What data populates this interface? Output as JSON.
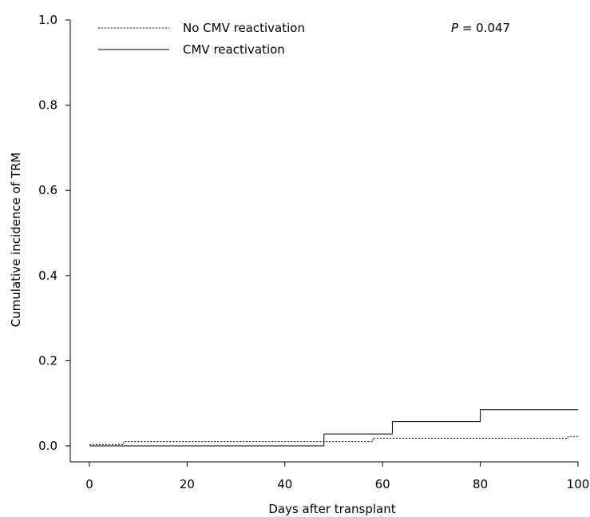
{
  "chart_data": {
    "type": "line",
    "step": true,
    "xlabel": "Days after transplant",
    "ylabel": "Cumulative incidence of TRM",
    "xlim": [
      0,
      100
    ],
    "ylim": [
      0,
      1.0
    ],
    "x_ticks": [
      "0",
      "20",
      "40",
      "60",
      "80",
      "100"
    ],
    "y_ticks": [
      "0.0",
      "0.2",
      "0.4",
      "0.6",
      "0.8",
      "1.0"
    ],
    "grid": false,
    "legend_position": "top-left",
    "annotation": {
      "italic": "P",
      "rest": " = 0.047"
    },
    "series": [
      {
        "name": "No CMV reactivation",
        "style": "dotted",
        "color": "#000000",
        "points": [
          [
            0,
            0.003
          ],
          [
            7,
            0.003
          ],
          [
            7,
            0.01
          ],
          [
            58,
            0.01
          ],
          [
            58,
            0.018
          ],
          [
            98,
            0.018
          ],
          [
            98,
            0.022
          ],
          [
            100,
            0.022
          ]
        ]
      },
      {
        "name": "CMV reactivation",
        "style": "solid",
        "color": "#000000",
        "points": [
          [
            0,
            0.0
          ],
          [
            48,
            0.0
          ],
          [
            48,
            0.028
          ],
          [
            62,
            0.028
          ],
          [
            62,
            0.057
          ],
          [
            80,
            0.057
          ],
          [
            80,
            0.085
          ],
          [
            100,
            0.085
          ]
        ]
      }
    ]
  }
}
